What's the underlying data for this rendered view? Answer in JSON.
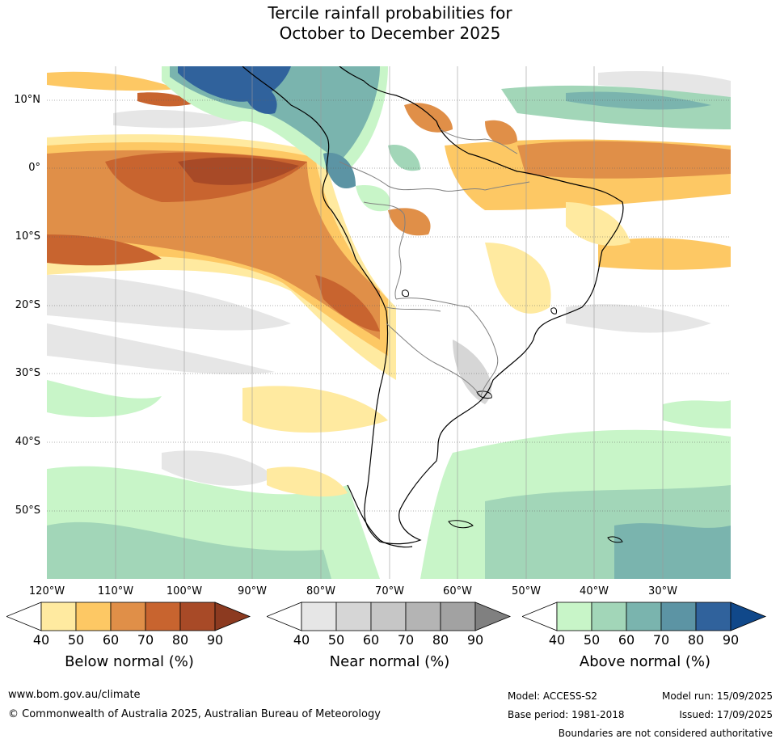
{
  "title_line1": "Tercile rainfall probabilities for",
  "title_line2": "October to December 2025",
  "latitude_labels": [
    "10°N",
    "0°",
    "10°S",
    "20°S",
    "30°S",
    "40°S",
    "50°S"
  ],
  "longitude_labels": [
    "120°W",
    "110°W",
    "100°W",
    "90°W",
    "80°W",
    "70°W",
    "60°W",
    "50°W",
    "40°W",
    "30°W"
  ],
  "colorbars": [
    {
      "title": "Below normal (%)",
      "ticks": [
        "40",
        "50",
        "60",
        "70",
        "80",
        "90"
      ],
      "colors": [
        "#ffffff",
        "#ffeaa0",
        "#fdc864",
        "#e08f48",
        "#c8642f",
        "#a84a27",
        "#8c3a20"
      ]
    },
    {
      "title": "Near normal (%)",
      "ticks": [
        "40",
        "50",
        "60",
        "70",
        "80",
        "90"
      ],
      "colors": [
        "#ffffff",
        "#e6e6e6",
        "#d6d6d6",
        "#c6c6c6",
        "#b4b4b4",
        "#a2a2a2",
        "#808080"
      ]
    },
    {
      "title": "Above normal (%)",
      "ticks": [
        "40",
        "50",
        "60",
        "70",
        "80",
        "90"
      ],
      "colors": [
        "#ffffff",
        "#c8f5c8",
        "#a2d6b8",
        "#7ab4ae",
        "#5c94a4",
        "#30629c",
        "#10488a"
      ]
    }
  ],
  "footer": {
    "website": "www.bom.gov.au/climate",
    "copyright": "© Commonwealth of Australia 2025, Australian Bureau of Meteorology",
    "model": "Model: ACCESS-S2",
    "base_period": "Base period: 1981-2018",
    "model_run": "Model run: 15/09/2025",
    "issued": "Issued: 17/09/2025",
    "disclaimer": "Boundaries are not considered authoritative"
  }
}
